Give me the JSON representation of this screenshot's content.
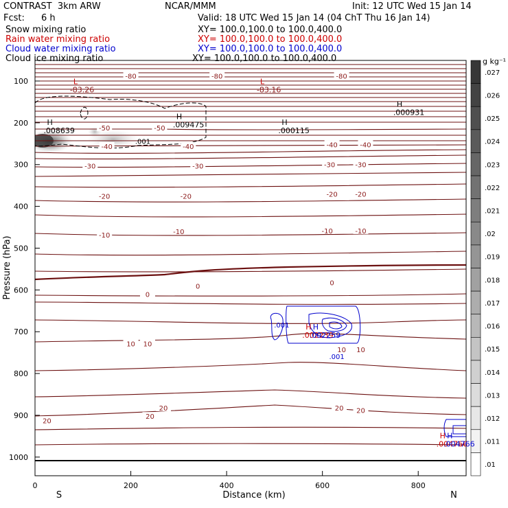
{
  "header": {
    "model": "CONTRAST  3km ARW",
    "org": "NCAR/MMM",
    "init": "Init: 12 UTC Wed 15 Jan 14",
    "fcst_label": "Fcst:",
    "fcst_value": "6 h",
    "valid": "Valid: 18 UTC Wed 15 Jan 14 (04 ChT Thu 16 Jan 14)"
  },
  "legend": [
    {
      "name": "Snow mixing ratio",
      "xy": "XY= 100.0,100.0 to 100.0,400.0",
      "color": "#000000"
    },
    {
      "name": "Rain water mixing ratio",
      "xy": "XY= 100.0,100.0 to 100.0,400.0",
      "color": "#cc0000"
    },
    {
      "name": "Cloud water mixing ratio",
      "xy": "XY= 100.0,100.0 to 100.0,400.0",
      "color": "#0000cc"
    },
    {
      "name": "Cloud ice mixing ratio",
      "xy": "XY= 100.0,100.0 to 100.0,400.0",
      "color": "#000000"
    }
  ],
  "chart_data": {
    "type": "contour",
    "xlabel": "Distance (km)",
    "ylabel": "Pressure (hPa)",
    "xlim": [
      0,
      900
    ],
    "ylim": [
      1050,
      50
    ],
    "x_ticks": [
      "0",
      "200",
      "400",
      "600",
      "800"
    ],
    "y_ticks": [
      "100",
      "200",
      "300",
      "400",
      "500",
      "600",
      "700",
      "800",
      "900",
      "1000"
    ],
    "x_end_labels": {
      "left": "S",
      "right": "N"
    },
    "colorbar": {
      "unit": "g kg⁻¹",
      "levels": [
        ".01",
        ".011",
        ".012",
        ".013",
        ".014",
        ".015",
        ".016",
        ".017",
        ".018",
        ".019",
        ".02",
        ".021",
        ".022",
        ".023",
        ".024",
        ".025",
        ".026",
        ".027"
      ]
    },
    "temperature_labels": [
      {
        "text": "-80",
        "x": 200,
        "p": 88
      },
      {
        "text": "-80",
        "x": 380,
        "p": 88
      },
      {
        "text": "-80",
        "x": 640,
        "p": 88
      },
      {
        "text": "-50",
        "x": 145,
        "p": 212
      },
      {
        "text": "-50",
        "x": 260,
        "p": 212
      },
      {
        "text": "-40",
        "x": 150,
        "p": 256
      },
      {
        "text": "-40",
        "x": 320,
        "p": 256
      },
      {
        "text": "-40",
        "x": 620,
        "p": 252
      },
      {
        "text": "-40",
        "x": 690,
        "p": 252
      },
      {
        "text": "-30",
        "x": 115,
        "p": 303
      },
      {
        "text": "-30",
        "x": 340,
        "p": 303
      },
      {
        "text": "-30",
        "x": 615,
        "p": 300
      },
      {
        "text": "-30",
        "x": 680,
        "p": 300
      },
      {
        "text": "-20",
        "x": 145,
        "p": 375
      },
      {
        "text": "-20",
        "x": 315,
        "p": 375
      },
      {
        "text": "-20",
        "x": 620,
        "p": 370
      },
      {
        "text": "-20",
        "x": 680,
        "p": 370
      },
      {
        "text": "-10",
        "x": 145,
        "p": 468
      },
      {
        "text": "-10",
        "x": 300,
        "p": 460
      },
      {
        "text": "-10",
        "x": 610,
        "p": 458
      },
      {
        "text": "-10",
        "x": 680,
        "p": 458
      },
      {
        "text": "0",
        "x": 235,
        "p": 610
      },
      {
        "text": "0",
        "x": 340,
        "p": 590
      },
      {
        "text": "0",
        "x": 620,
        "p": 582
      },
      {
        "text": "10",
        "x": 200,
        "p": 728
      },
      {
        "text": "10",
        "x": 235,
        "p": 728
      },
      {
        "text": "10",
        "x": 640,
        "p": 742
      },
      {
        "text": "10",
        "x": 680,
        "p": 742
      },
      {
        "text": "20",
        "x": 25,
        "p": 912
      },
      {
        "text": "20",
        "x": 240,
        "p": 902
      },
      {
        "text": "20",
        "x": 268,
        "p": 882
      },
      {
        "text": "20",
        "x": 635,
        "p": 882
      },
      {
        "text": "20",
        "x": 680,
        "p": 888
      }
    ],
    "extrema": [
      {
        "sym": "L",
        "value": "-83.26",
        "x": 80,
        "p": 107,
        "color": "#cc0000",
        "vcolor": "#8b1a1a"
      },
      {
        "sym": "L",
        "value": "-83.16",
        "x": 470,
        "p": 107,
        "color": "#cc0000",
        "vcolor": "#8b1a1a"
      },
      {
        "sym": "H",
        "value": ".000931",
        "x": 755,
        "p": 162,
        "color": "#000000",
        "vcolor": "#000000"
      },
      {
        "sym": "H",
        "value": ".009475",
        "x": 295,
        "p": 191,
        "color": "#000000",
        "vcolor": "#000000"
      },
      {
        "sym": "H",
        "value": ".008639",
        "x": 25,
        "p": 205,
        "color": "#000000",
        "vcolor": "#000000"
      },
      {
        "sym": "H",
        "value": ".000115",
        "x": 515,
        "p": 205,
        "color": "#000000",
        "vcolor": "#000000"
      },
      {
        "sym": "H",
        "value": ".002239",
        "x": 565,
        "p": 695,
        "color": "#cc0000",
        "vcolor": "#cc0000"
      },
      {
        "sym": "H",
        "value": ".002259",
        "x": 580,
        "p": 695,
        "color": "#0000cc",
        "vcolor": "#0000cc"
      },
      {
        "sym": "H",
        "value": ".004766",
        "x": 845,
        "p": 955,
        "color": "#cc0000",
        "vcolor": "#cc0000"
      },
      {
        "sym": "H",
        "value": ".004766",
        "x": 860,
        "p": 955,
        "color": "#0000cc",
        "vcolor": "#0000cc"
      }
    ],
    "cloud_water_labels": [
      {
        "text": ".001",
        "x": 515,
        "p": 690
      },
      {
        "text": ".001",
        "x": 630,
        "p": 765
      }
    ],
    "cloud_ice_labels": [
      {
        "text": ".001",
        "x": 225,
        "p": 250
      }
    ]
  }
}
